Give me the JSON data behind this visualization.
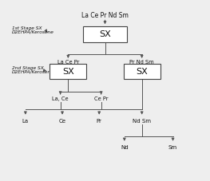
{
  "title_text": "La Ce Pr Nd Sm",
  "box1_label": "SX",
  "box2_label": "SX",
  "box3_label": "SX",
  "box2_top_label": "La Ce Pr",
  "box3_top_label": "Pr Nd Sm",
  "stage1_line1": "1st Stage SX",
  "stage1_line2": "D2EHPA/Kerosene",
  "stage2_line1": "2nd Stage SX",
  "stage2_line2": "D2EHPA/Kerosene",
  "mid_label_left": "La, Ce",
  "mid_label_right": "Ce Pr",
  "leaf_labels": [
    "La",
    "Ce",
    "Pr",
    "Nd Sm"
  ],
  "bottom_labels": [
    "Nd",
    "Sm"
  ],
  "bg_color": "#eeeeee",
  "box_color": "#ffffff",
  "box_edge": "#444444",
  "line_color": "#555555",
  "text_color": "#111111"
}
